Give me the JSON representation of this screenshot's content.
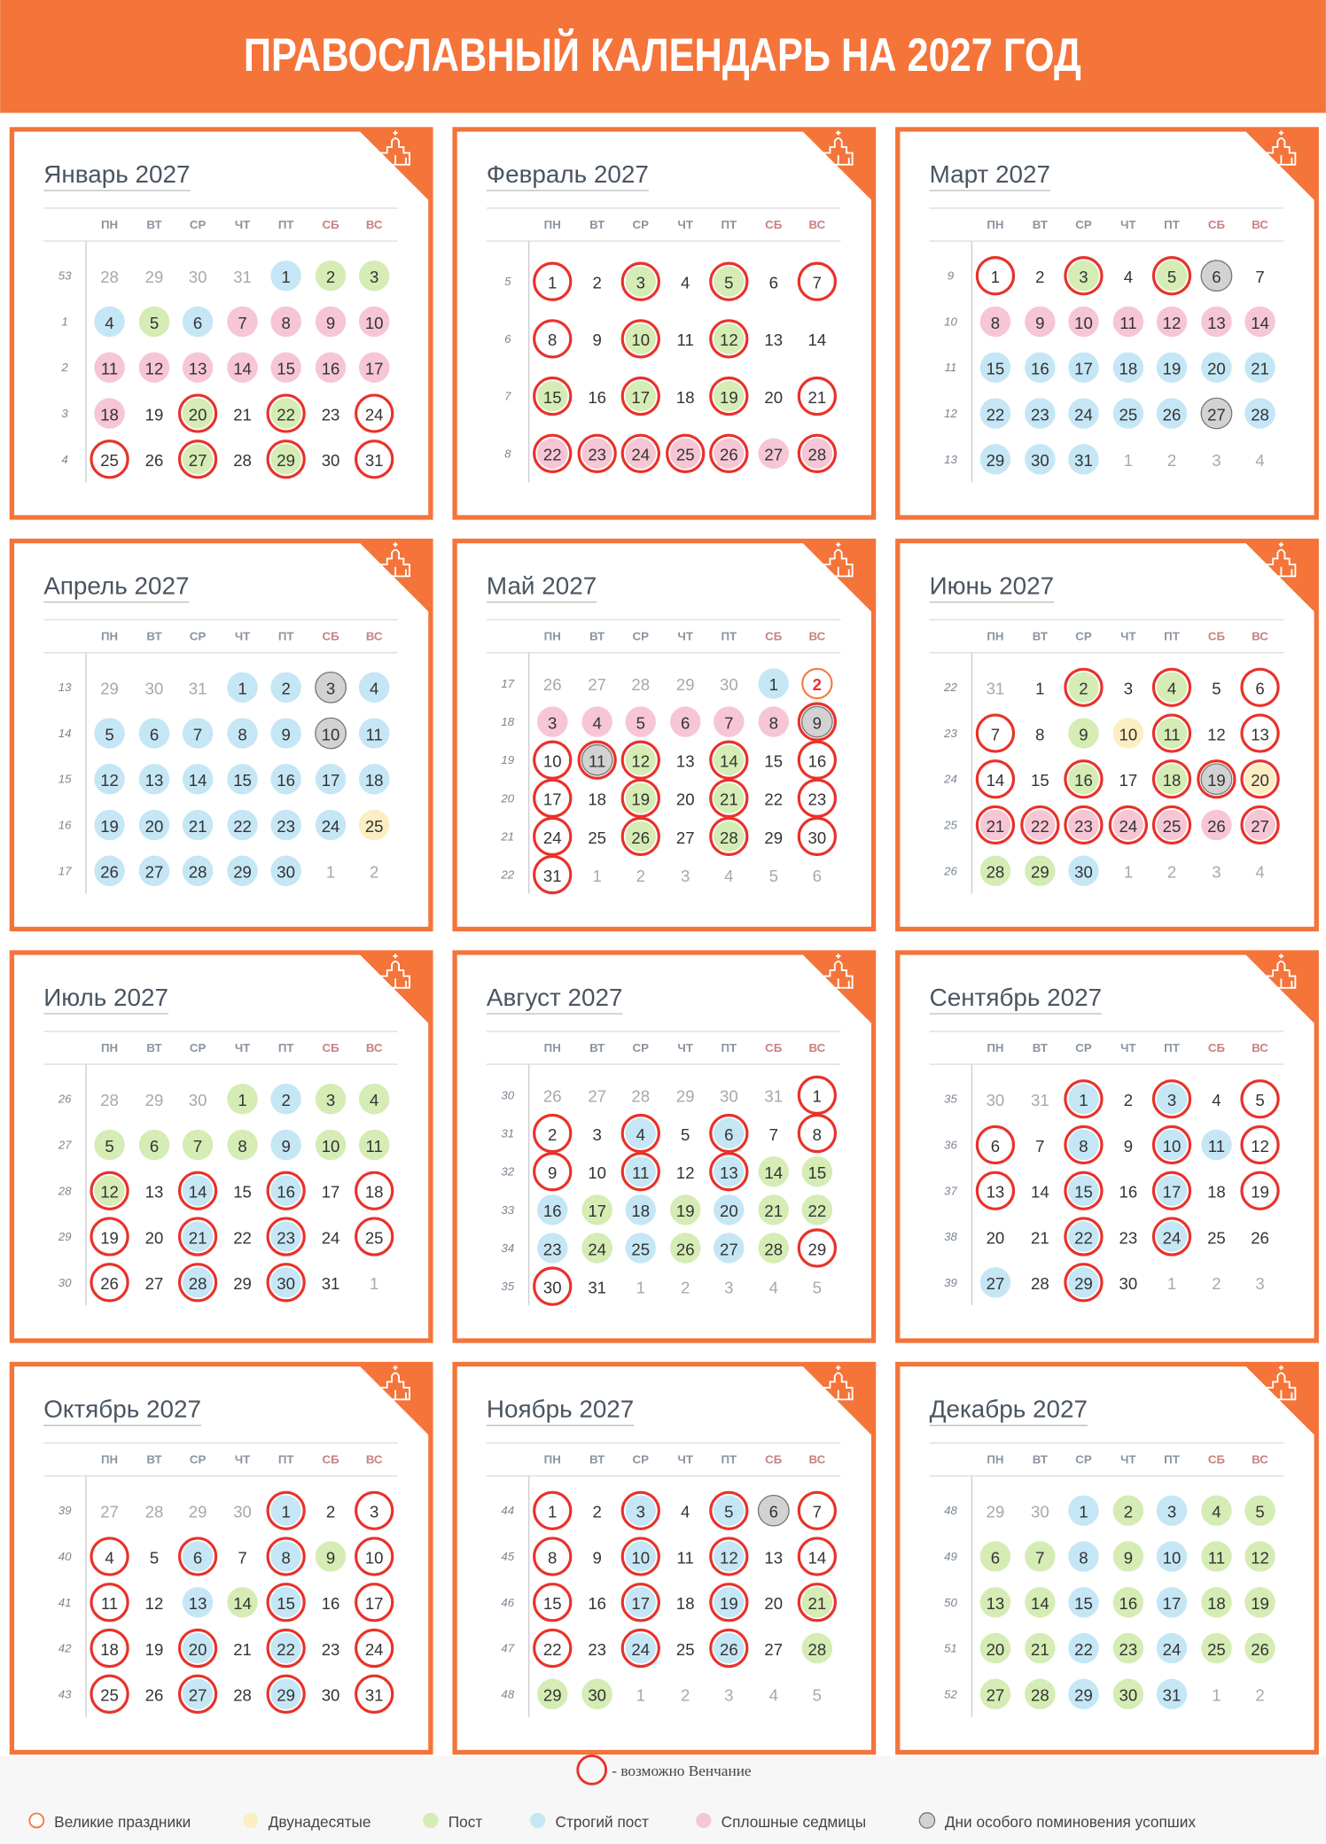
{
  "header": {
    "title": "ПРАВОСЛАВНЫЙ КАЛЕНДАРЬ НА 2027 ГОД"
  },
  "weekdays": [
    "ПН",
    "ВТ",
    "СР",
    "ЧТ",
    "ПТ",
    "СБ",
    "ВС"
  ],
  "legend": {
    "wedding_note": "- возможно Венчание",
    "items": [
      {
        "label": "Великие праздники",
        "color": "#f57a3d"
      },
      {
        "label": "Двунадесятые",
        "color": "#fbeec2"
      },
      {
        "label": "Пост",
        "color": "#d5ecb4"
      },
      {
        "label": "Строгий пост",
        "color": "#c5e6f5"
      },
      {
        "label": "Сплошные седмицы",
        "color": "#f6c6d4"
      },
      {
        "label": "Дни особого поминовения усопших",
        "color": "#d2d2d2"
      }
    ]
  },
  "months": [
    {
      "title": "Январь 2027",
      "weeks": [
        53,
        1,
        2,
        3,
        4
      ],
      "days": [
        [
          28,
          29,
          30,
          31,
          1,
          2,
          3
        ],
        [
          4,
          5,
          6,
          7,
          8,
          9,
          10
        ],
        [
          11,
          12,
          13,
          14,
          15,
          16,
          17
        ],
        [
          18,
          19,
          20,
          21,
          22,
          23,
          24
        ],
        [
          25,
          26,
          27,
          28,
          29,
          30,
          31
        ]
      ],
      "marks": [
        [],
        [],
        [
          2,
          3,
          5,
          20,
          22,
          27,
          29
        ],
        [
          1,
          4,
          6
        ],
        [
          7,
          8,
          9,
          10,
          11,
          12,
          13,
          14,
          15,
          16,
          17,
          18
        ],
        []
      ],
      "wedding": [
        20,
        22,
        24,
        25,
        27,
        29,
        31
      ]
    },
    {
      "title": "Февраль 2027",
      "weeks": [
        5,
        6,
        7,
        8
      ],
      "days": [
        [
          1,
          2,
          3,
          4,
          5,
          6,
          7
        ],
        [
          8,
          9,
          10,
          11,
          12,
          13,
          14
        ],
        [
          15,
          16,
          17,
          18,
          19,
          20,
          21
        ],
        [
          22,
          23,
          24,
          25,
          26,
          27,
          28
        ]
      ],
      "marks": [
        [],
        [],
        [
          3,
          5,
          10,
          12,
          15,
          17,
          19
        ],
        [],
        [
          22,
          23,
          24,
          25,
          26,
          27,
          28
        ],
        []
      ],
      "wedding": [
        1,
        3,
        5,
        7,
        8,
        10,
        12,
        15,
        17,
        19,
        21,
        22,
        23,
        24,
        25,
        26,
        28
      ]
    },
    {
      "title": "Март 2027",
      "weeks": [
        9,
        10,
        11,
        12,
        13
      ],
      "days": [
        [
          1,
          2,
          3,
          4,
          5,
          6,
          7
        ],
        [
          8,
          9,
          10,
          11,
          12,
          13,
          14
        ],
        [
          15,
          16,
          17,
          18,
          19,
          20,
          21
        ],
        [
          22,
          23,
          24,
          25,
          26,
          27,
          28
        ],
        [
          29,
          30,
          31,
          1,
          2,
          3,
          4
        ]
      ],
      "marks": [
        [],
        [],
        [
          3,
          5
        ],
        [
          15,
          16,
          17,
          18,
          19,
          20,
          21,
          22,
          23,
          24,
          25,
          26,
          28,
          29,
          30,
          31
        ],
        [
          8,
          9,
          10,
          11,
          12,
          13,
          14
        ],
        [
          6,
          27
        ]
      ],
      "wedding": [
        1,
        3,
        5
      ]
    },
    {
      "title": "Апрель 2027",
      "weeks": [
        13,
        14,
        15,
        16,
        17
      ],
      "days": [
        [
          29,
          30,
          31,
          1,
          2,
          3,
          4
        ],
        [
          5,
          6,
          7,
          8,
          9,
          10,
          11
        ],
        [
          12,
          13,
          14,
          15,
          16,
          17,
          18
        ],
        [
          19,
          20,
          21,
          22,
          23,
          24,
          25
        ],
        [
          26,
          27,
          28,
          29,
          30,
          1,
          2
        ]
      ],
      "marks": [
        [],
        [
          25
        ],
        [],
        [
          1,
          2,
          4,
          5,
          6,
          7,
          8,
          9,
          11,
          12,
          13,
          14,
          15,
          16,
          17,
          18,
          19,
          20,
          21,
          22,
          23,
          24,
          26,
          27,
          28,
          29,
          30
        ],
        [],
        [
          3,
          10
        ]
      ],
      "wedding": []
    },
    {
      "title": "Май 2027",
      "weeks": [
        17,
        18,
        19,
        20,
        21,
        22
      ],
      "days": [
        [
          26,
          27,
          28,
          29,
          30,
          1,
          2
        ],
        [
          3,
          4,
          5,
          6,
          7,
          8,
          9
        ],
        [
          10,
          11,
          12,
          13,
          14,
          15,
          16
        ],
        [
          17,
          18,
          19,
          20,
          21,
          22,
          23
        ],
        [
          24,
          25,
          26,
          27,
          28,
          29,
          30
        ],
        [
          31,
          1,
          2,
          3,
          4,
          5,
          6
        ]
      ],
      "marks": [
        [
          2
        ],
        [],
        [
          12,
          14,
          19,
          21,
          26,
          28
        ],
        [
          1
        ],
        [
          3,
          4,
          5,
          6,
          7,
          8
        ],
        [
          9,
          11
        ]
      ],
      "wedding": [
        9,
        10,
        11,
        12,
        14,
        16,
        17,
        19,
        21,
        23,
        24,
        26,
        28,
        30,
        31
      ]
    },
    {
      "title": "Июнь 2027",
      "weeks": [
        22,
        23,
        24,
        25,
        26
      ],
      "days": [
        [
          31,
          1,
          2,
          3,
          4,
          5,
          6
        ],
        [
          7,
          8,
          9,
          10,
          11,
          12,
          13
        ],
        [
          14,
          15,
          16,
          17,
          18,
          19,
          20
        ],
        [
          21,
          22,
          23,
          24,
          25,
          26,
          27
        ],
        [
          28,
          29,
          30,
          1,
          2,
          3,
          4
        ]
      ],
      "marks": [
        [],
        [
          10,
          20
        ],
        [
          2,
          4,
          9,
          11,
          16,
          18,
          28,
          29
        ],
        [
          30
        ],
        [
          21,
          22,
          23,
          24,
          25,
          26,
          27
        ],
        [
          19
        ]
      ],
      "wedding": [
        2,
        4,
        6,
        7,
        11,
        13,
        14,
        16,
        18,
        19,
        20,
        21,
        22,
        23,
        24,
        25,
        27
      ]
    },
    {
      "title": "Июль 2027",
      "weeks": [
        26,
        27,
        28,
        29,
        30
      ],
      "days": [
        [
          28,
          29,
          30,
          1,
          2,
          3,
          4
        ],
        [
          5,
          6,
          7,
          8,
          9,
          10,
          11
        ],
        [
          12,
          13,
          14,
          15,
          16,
          17,
          18
        ],
        [
          19,
          20,
          21,
          22,
          23,
          24,
          25
        ],
        [
          26,
          27,
          28,
          29,
          30,
          31,
          1
        ]
      ],
      "marks": [
        [],
        [],
        [
          1,
          3,
          4,
          5,
          6,
          7,
          8,
          10,
          11,
          12
        ],
        [
          2,
          9,
          14,
          16,
          21,
          23,
          28,
          30
        ],
        [],
        []
      ],
      "wedding": [
        12,
        14,
        16,
        18,
        19,
        21,
        23,
        25,
        26,
        28,
        30
      ]
    },
    {
      "title": "Август 2027",
      "weeks": [
        30,
        31,
        32,
        33,
        34,
        35
      ],
      "days": [
        [
          26,
          27,
          28,
          29,
          30,
          31,
          1
        ],
        [
          2,
          3,
          4,
          5,
          6,
          7,
          8
        ],
        [
          9,
          10,
          11,
          12,
          13,
          14,
          15
        ],
        [
          16,
          17,
          18,
          19,
          20,
          21,
          22
        ],
        [
          23,
          24,
          25,
          26,
          27,
          28,
          29
        ],
        [
          30,
          31,
          1,
          2,
          3,
          4,
          5
        ]
      ],
      "marks": [
        [],
        [],
        [
          14,
          15,
          17,
          19,
          21,
          22,
          24,
          26,
          28
        ],
        [
          4,
          6,
          11,
          13,
          16,
          18,
          20,
          23,
          25,
          27
        ],
        [],
        []
      ],
      "wedding": [
        1,
        2,
        4,
        6,
        8,
        9,
        11,
        13,
        29,
        30
      ]
    },
    {
      "title": "Сентябрь 2027",
      "weeks": [
        35,
        36,
        37,
        38,
        39
      ],
      "days": [
        [
          30,
          31,
          1,
          2,
          3,
          4,
          5
        ],
        [
          6,
          7,
          8,
          9,
          10,
          11,
          12
        ],
        [
          13,
          14,
          15,
          16,
          17,
          18,
          19
        ],
        [
          20,
          21,
          22,
          23,
          24,
          25,
          26
        ],
        [
          27,
          28,
          29,
          30,
          1,
          2,
          3
        ]
      ],
      "marks": [
        [],
        [],
        [],
        [
          1,
          3,
          8,
          10,
          11,
          15,
          17,
          22,
          24,
          27,
          29
        ],
        [],
        []
      ],
      "wedding": [
        1,
        3,
        5,
        6,
        8,
        10,
        12,
        13,
        15,
        17,
        19,
        22,
        24,
        29
      ]
    },
    {
      "title": "Октябрь 2027",
      "weeks": [
        39,
        40,
        41,
        42,
        43
      ],
      "days": [
        [
          27,
          28,
          29,
          30,
          1,
          2,
          3
        ],
        [
          4,
          5,
          6,
          7,
          8,
          9,
          10
        ],
        [
          11,
          12,
          13,
          14,
          15,
          16,
          17
        ],
        [
          18,
          19,
          20,
          21,
          22,
          23,
          24
        ],
        [
          25,
          26,
          27,
          28,
          29,
          30,
          31
        ]
      ],
      "marks": [
        [],
        [],
        [
          9,
          14
        ],
        [
          1,
          6,
          8,
          13,
          15,
          20,
          22,
          27,
          29
        ],
        [],
        []
      ],
      "wedding": [
        1,
        3,
        4,
        6,
        8,
        10,
        11,
        15,
        17,
        18,
        20,
        22,
        24,
        25,
        27,
        29,
        31
      ]
    },
    {
      "title": "Ноябрь 2027",
      "weeks": [
        44,
        45,
        46,
        47,
        48
      ],
      "days": [
        [
          1,
          2,
          3,
          4,
          5,
          6,
          7
        ],
        [
          8,
          9,
          10,
          11,
          12,
          13,
          14
        ],
        [
          15,
          16,
          17,
          18,
          19,
          20,
          21
        ],
        [
          22,
          23,
          24,
          25,
          26,
          27,
          28
        ],
        [
          29,
          30,
          1,
          2,
          3,
          4,
          5
        ]
      ],
      "marks": [
        [],
        [],
        [
          21,
          28,
          29,
          30
        ],
        [
          3,
          5,
          10,
          12,
          17,
          19,
          24,
          26
        ],
        [],
        [
          6
        ]
      ],
      "wedding": [
        1,
        3,
        5,
        7,
        8,
        10,
        12,
        14,
        15,
        17,
        19,
        21,
        22,
        24,
        26
      ]
    },
    {
      "title": "Декабрь 2027",
      "weeks": [
        48,
        49,
        50,
        51,
        52
      ],
      "days": [
        [
          29,
          30,
          1,
          2,
          3,
          4,
          5
        ],
        [
          6,
          7,
          8,
          9,
          10,
          11,
          12
        ],
        [
          13,
          14,
          15,
          16,
          17,
          18,
          19
        ],
        [
          20,
          21,
          22,
          23,
          24,
          25,
          26
        ],
        [
          27,
          28,
          29,
          30,
          31,
          1,
          2
        ]
      ],
      "marks": [
        [],
        [],
        [
          2,
          4,
          5,
          6,
          7,
          9,
          11,
          12,
          13,
          14,
          16,
          18,
          19,
          20,
          21,
          23,
          25,
          26,
          27,
          28,
          30
        ],
        [
          1,
          3,
          8,
          10,
          15,
          17,
          22,
          24,
          29,
          31
        ],
        [],
        []
      ],
      "wedding": []
    }
  ]
}
